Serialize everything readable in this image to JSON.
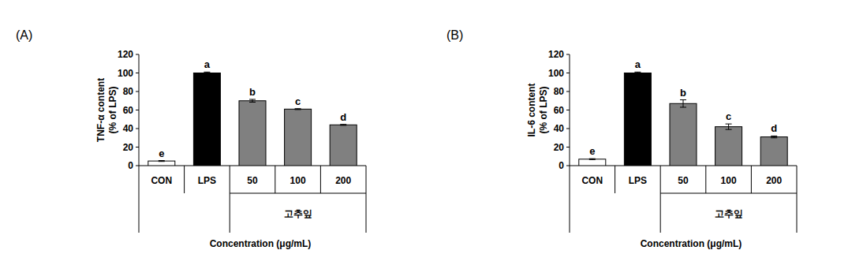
{
  "chart_data": [
    {
      "type": "bar",
      "title": "(A)",
      "ylabel": "TNF-α content (% of LPS)",
      "xlabel": "Concentration (μg/mL)",
      "categories": [
        "CON",
        "LPS",
        "50",
        "100",
        "200"
      ],
      "values": [
        5,
        100,
        70,
        61,
        44
      ],
      "errors": [
        0.5,
        1,
        1.5,
        0.5,
        0.5
      ],
      "annotations": [
        "e",
        "a",
        "b",
        "c",
        "d"
      ],
      "x_group": {
        "label": "고추잎",
        "from": "50",
        "to": "200"
      },
      "colors": [
        "#ffffff",
        "#000000",
        "#808080",
        "#808080",
        "#808080"
      ],
      "ylim": [
        0,
        120
      ],
      "yticks": [
        0,
        20,
        40,
        60,
        80,
        100,
        120
      ],
      "grid": false
    },
    {
      "type": "bar",
      "title": "(B)",
      "ylabel": "IL-6 content (% of LPS)",
      "xlabel": "Concentration (μg/mL)",
      "categories": [
        "CON",
        "LPS",
        "50",
        "100",
        "200"
      ],
      "values": [
        7,
        100,
        67,
        42,
        31
      ],
      "errors": [
        0.5,
        1,
        4,
        3,
        1
      ],
      "annotations": [
        "e",
        "a",
        "b",
        "c",
        "d"
      ],
      "x_group": {
        "label": "고추잎",
        "from": "50",
        "to": "200"
      },
      "colors": [
        "#ffffff",
        "#000000",
        "#808080",
        "#808080",
        "#808080"
      ],
      "ylim": [
        0,
        120
      ],
      "yticks": [
        0,
        20,
        40,
        60,
        80,
        100,
        120
      ],
      "grid": false
    }
  ]
}
